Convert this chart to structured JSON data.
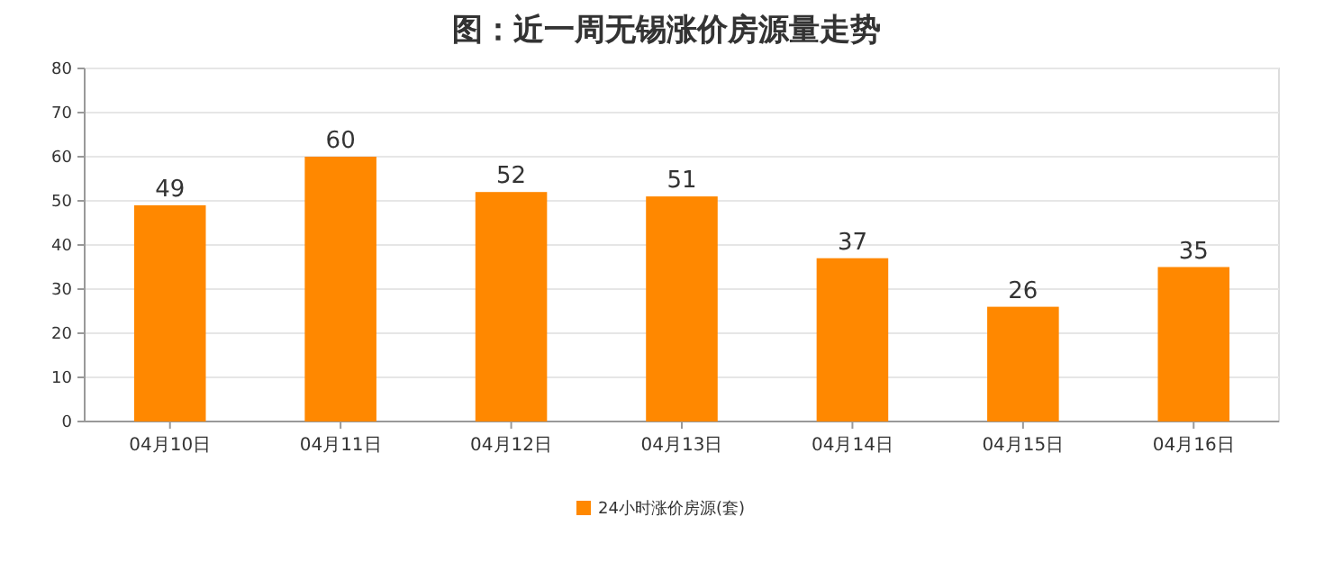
{
  "chart_data": {
    "type": "bar",
    "title": "图：近一周无锡涨价房源量走势",
    "categories": [
      "04月10日",
      "04月11日",
      "04月12日",
      "04月13日",
      "04月14日",
      "04月15日",
      "04月16日"
    ],
    "series": [
      {
        "name": "24小时涨价房源(套)",
        "color": "#ff8800",
        "values": [
          49,
          60,
          52,
          51,
          37,
          26,
          35
        ]
      }
    ],
    "ylim": [
      0,
      80
    ],
    "yticks": [
      0,
      10,
      20,
      30,
      40,
      50,
      60,
      70,
      80
    ],
    "grid": "y",
    "legend": "bottom",
    "data_labels": true
  }
}
